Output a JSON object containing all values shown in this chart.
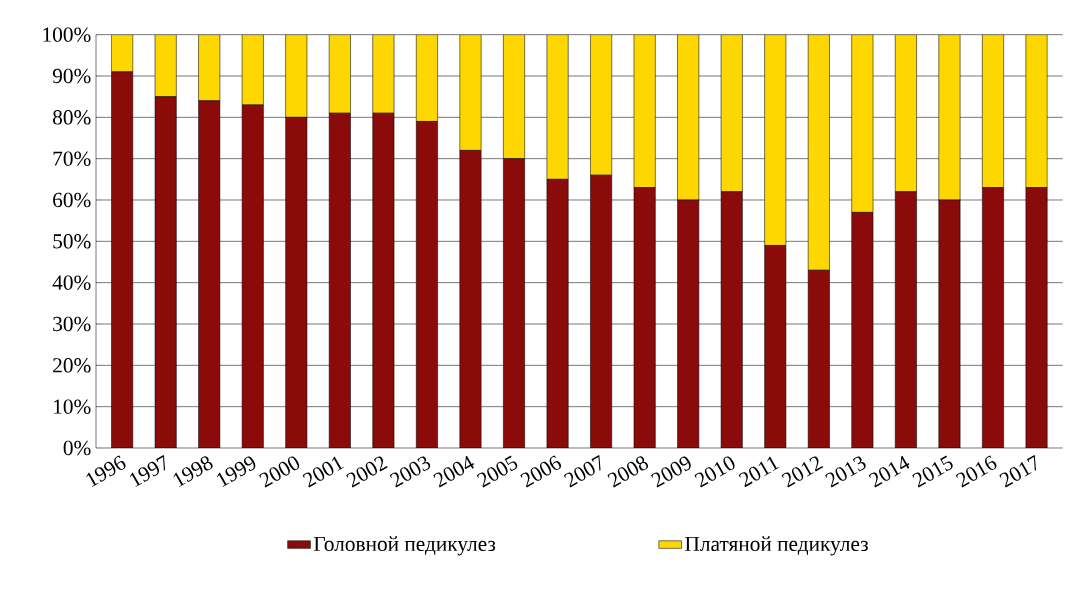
{
  "chart_data": {
    "type": "bar",
    "stacked": true,
    "categories": [
      "1996",
      "1997",
      "1998",
      "1999",
      "2000",
      "2001",
      "2002",
      "2003",
      "2004",
      "2005",
      "2006",
      "2007",
      "2008",
      "2009",
      "2010",
      "2011",
      "2012",
      "2013",
      "2014",
      "2015",
      "2016",
      "2017"
    ],
    "series": [
      {
        "name": "Головной педикулез",
        "color": "#8b0a0a",
        "values": [
          91,
          85,
          84,
          83,
          80,
          81,
          81,
          79,
          72,
          70,
          65,
          66,
          63,
          60,
          62,
          49,
          43,
          57,
          62,
          60,
          63,
          63
        ]
      },
      {
        "name": "Платяной педикулез",
        "color": "#ffd700",
        "values": [
          9,
          15,
          16,
          17,
          20,
          19,
          19,
          21,
          28,
          30,
          35,
          34,
          37,
          40,
          38,
          51,
          57,
          43,
          38,
          40,
          37,
          37
        ]
      }
    ],
    "ylim": [
      0,
      100
    ],
    "yticks": [
      {
        "value": 0,
        "label": "0%"
      },
      {
        "value": 10,
        "label": "10%"
      },
      {
        "value": 20,
        "label": "20%"
      },
      {
        "value": 30,
        "label": "30%"
      },
      {
        "value": 40,
        "label": "40%"
      },
      {
        "value": 50,
        "label": "50%"
      },
      {
        "value": 60,
        "label": "60%"
      },
      {
        "value": 70,
        "label": "70%"
      },
      {
        "value": 80,
        "label": "80%"
      },
      {
        "value": 90,
        "label": "90%"
      },
      {
        "value": 100,
        "label": "100%"
      }
    ],
    "grid": "y",
    "legend": "bottom"
  }
}
